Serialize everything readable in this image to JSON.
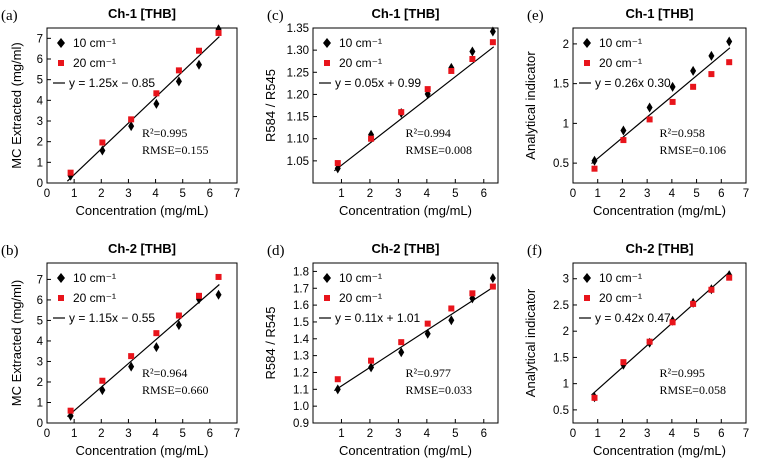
{
  "chart_data": [
    {
      "type": "scatter",
      "panel_label": "(a)",
      "title": "Ch-1 [THB]",
      "xlabel": "Concentration (mg/mL)",
      "ylabel": "MC Extracted (mg/ml)",
      "xlim": [
        0,
        7
      ],
      "xticks": [
        0,
        1,
        2,
        3,
        4,
        5,
        6,
        7
      ],
      "ylim": [
        0,
        7.5
      ],
      "yticks": [
        0,
        1,
        2,
        3,
        4,
        5,
        6,
        7
      ],
      "x": [
        0.87,
        2.04,
        3.1,
        4.03,
        4.86,
        5.6,
        6.32
      ],
      "series": [
        {
          "name": "10 cm⁻¹",
          "marker": "diamond",
          "color": "#000000",
          "values": [
            0.35,
            1.57,
            2.75,
            3.83,
            4.92,
            5.72,
            7.44
          ]
        },
        {
          "name": "20 cm⁻¹",
          "marker": "square",
          "color": "#e8141b",
          "values": [
            0.5,
            1.96,
            3.08,
            4.34,
            5.45,
            6.4,
            7.26
          ]
        }
      ],
      "fit": {
        "label": "y = 1.25x − 0.85",
        "slope": 1.25,
        "intercept": -0.85,
        "x_range": [
          0.75,
          6.35
        ]
      },
      "r2": "R²=0.995",
      "rmse": "RMSE=0.155"
    },
    {
      "type": "scatter",
      "panel_label": "(c)",
      "title": "Ch-1 [THB]",
      "xlabel": "Concentration (mg/mL)",
      "ylabel": "R584 / R545",
      "xlim": [
        0,
        6.5
      ],
      "xticks": [
        1,
        2,
        3,
        4,
        5,
        6
      ],
      "ylim": [
        1.0,
        1.35
      ],
      "yticks": [
        1.05,
        1.1,
        1.15,
        1.2,
        1.25,
        1.3,
        1.35
      ],
      "x": [
        0.87,
        2.04,
        3.1,
        4.03,
        4.86,
        5.6,
        6.32
      ],
      "series": [
        {
          "name": "10 cm⁻¹",
          "marker": "diamond",
          "color": "#000000",
          "values": [
            1.033,
            1.109,
            1.158,
            1.201,
            1.26,
            1.297,
            1.342
          ]
        },
        {
          "name": "20 cm⁻¹",
          "marker": "square",
          "color": "#e8141b",
          "values": [
            1.045,
            1.1,
            1.16,
            1.212,
            1.253,
            1.28,
            1.318
          ]
        }
      ],
      "fit": {
        "label": "y = 0.05x + 0.99",
        "slope": 0.05,
        "intercept": 0.99,
        "x_range": [
          0.75,
          6.35
        ]
      },
      "r2": "R²=0.994",
      "rmse": "RMSE=0.008"
    },
    {
      "type": "scatter",
      "panel_label": "(e)",
      "title": "Ch-1 [THB]",
      "xlabel": "Concentration (mg/mL)",
      "ylabel": "Analytical indicator",
      "xlim": [
        0,
        7
      ],
      "xticks": [
        0,
        1,
        2,
        3,
        4,
        5,
        6,
        7
      ],
      "ylim": [
        0.25,
        2.2
      ],
      "yticks": [
        0.5,
        1,
        1.5,
        2
      ],
      "x": [
        0.87,
        2.04,
        3.1,
        4.03,
        4.86,
        5.6,
        6.32
      ],
      "series": [
        {
          "name": "10 cm⁻¹",
          "marker": "diamond",
          "color": "#000000",
          "values": [
            0.53,
            0.91,
            1.2,
            1.46,
            1.66,
            1.85,
            2.03
          ]
        },
        {
          "name": "20 cm⁻¹",
          "marker": "square",
          "color": "#e8141b",
          "values": [
            0.43,
            0.79,
            1.05,
            1.27,
            1.46,
            1.62,
            1.77
          ]
        }
      ],
      "fit": {
        "label": "y = 0.26x 0.30",
        "slope": 0.26,
        "intercept": 0.3,
        "x_range": [
          0.75,
          6.35
        ]
      },
      "r2": "R²=0.958",
      "rmse": "RMSE=0.106"
    },
    {
      "type": "scatter",
      "panel_label": "(b)",
      "title": "Ch-2 [THB]",
      "xlabel": "Concentration (mg/mL)",
      "ylabel": "MC Extracted (mg/ml)",
      "xlim": [
        0,
        7
      ],
      "xticks": [
        0,
        1,
        2,
        3,
        4,
        5,
        6,
        7
      ],
      "ylim": [
        0,
        7.8
      ],
      "yticks": [
        0,
        1,
        2,
        3,
        4,
        5,
        6,
        7
      ],
      "x": [
        0.87,
        2.04,
        3.1,
        4.03,
        4.86,
        5.6,
        6.32
      ],
      "series": [
        {
          "name": "10 cm⁻¹",
          "marker": "diamond",
          "color": "#000000",
          "values": [
            0.35,
            1.6,
            2.75,
            3.7,
            4.77,
            6.04,
            6.25
          ]
        },
        {
          "name": "20 cm⁻¹",
          "marker": "square",
          "color": "#e8141b",
          "values": [
            0.6,
            2.06,
            3.26,
            4.38,
            5.24,
            6.2,
            7.12
          ]
        }
      ],
      "fit": {
        "label": "y = 1.15x − 0.55",
        "slope": 1.15,
        "intercept": -0.55,
        "x_range": [
          0.75,
          6.35
        ]
      },
      "r2": "R²=0.964",
      "rmse": "RMSE=0.660"
    },
    {
      "type": "scatter",
      "panel_label": "(d)",
      "title": "Ch-2 [THB]",
      "xlabel": "Concentration (mg/mL)",
      "ylabel": "R584 / R545",
      "xlim": [
        0,
        6.5
      ],
      "xticks": [
        1,
        2,
        3,
        4,
        5,
        6
      ],
      "ylim": [
        0.9,
        1.85
      ],
      "yticks": [
        0.9,
        1.0,
        1.1,
        1.2,
        1.3,
        1.4,
        1.5,
        1.6,
        1.7,
        1.8
      ],
      "x": [
        0.87,
        2.04,
        3.1,
        4.03,
        4.86,
        5.6,
        6.32
      ],
      "series": [
        {
          "name": "10 cm⁻¹",
          "marker": "diamond",
          "color": "#000000",
          "values": [
            1.1,
            1.23,
            1.32,
            1.43,
            1.51,
            1.64,
            1.76
          ]
        },
        {
          "name": "20 cm⁻¹",
          "marker": "square",
          "color": "#e8141b",
          "values": [
            1.16,
            1.27,
            1.38,
            1.49,
            1.58,
            1.67,
            1.71
          ]
        }
      ],
      "fit": {
        "label": "y = 0.11x + 1.01",
        "slope": 0.11,
        "intercept": 1.01,
        "x_range": [
          0.75,
          6.35
        ]
      },
      "r2": "R²=0.977",
      "rmse": "RMSE=0.033"
    },
    {
      "type": "scatter",
      "panel_label": "(f)",
      "title": "Ch-2 [THB]",
      "xlabel": "Concentration (mg/mL)",
      "ylabel": "Analytical indicator",
      "xlim": [
        0,
        7
      ],
      "xticks": [
        0,
        1,
        2,
        3,
        4,
        5,
        6,
        7
      ],
      "ylim": [
        0.25,
        3.3
      ],
      "yticks": [
        0.5,
        1,
        1.5,
        2,
        2.5,
        3
      ],
      "x": [
        0.87,
        2.04,
        3.1,
        4.03,
        4.86,
        5.6,
        6.32
      ],
      "series": [
        {
          "name": "10 cm⁻¹",
          "marker": "diamond",
          "color": "#000000",
          "values": [
            0.74,
            1.36,
            1.78,
            2.2,
            2.54,
            2.8,
            3.07
          ]
        },
        {
          "name": "20 cm⁻¹",
          "marker": "square",
          "color": "#e8141b",
          "values": [
            0.73,
            1.41,
            1.8,
            2.17,
            2.52,
            2.79,
            3.02
          ]
        }
      ],
      "fit": {
        "label": "y = 0.42x 0.47",
        "slope": 0.42,
        "intercept": 0.47,
        "x_range": [
          0.75,
          6.35
        ]
      },
      "r2": "R²=0.995",
      "rmse": "RMSE=0.058"
    }
  ]
}
